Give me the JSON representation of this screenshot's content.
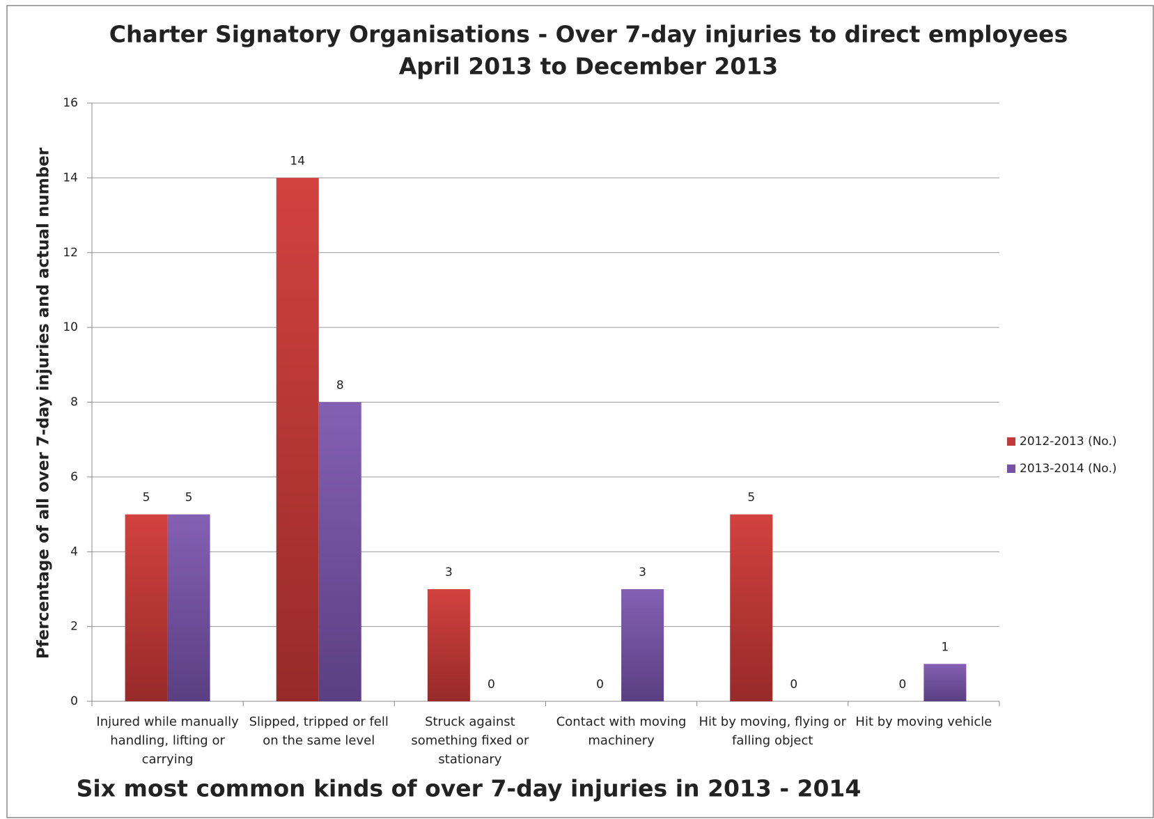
{
  "chart_data": {
    "type": "bar",
    "title": "Charter Signatory Organisations - Over 7-day injuries to direct employees",
    "subtitle": "April 2013 to December 2013",
    "x_label": "Six most common kinds of over 7-day injuries in 2013 - 2014",
    "y_label": "Pfercentage of all over 7-day injuries and actual number",
    "categories": [
      "Injured while manually handling, lifting or carrying",
      "Slipped, tripped or fell on the same level",
      "Struck against something fixed or stationary",
      "Contact with moving machinery",
      "Hit by moving, flying or falling object",
      "Hit by moving vehicle"
    ],
    "series": [
      {
        "name": "2012-2013 (No.)",
        "color": "#c0393b",
        "values": [
          5,
          14,
          3,
          0,
          5,
          0
        ]
      },
      {
        "name": "2013-2014 (No.)",
        "color": "#7552a3",
        "values": [
          5,
          8,
          0,
          3,
          0,
          1
        ]
      }
    ],
    "ylim": [
      0,
      16
    ],
    "yticks": [
      0,
      2,
      4,
      6,
      8,
      10,
      12,
      14,
      16
    ],
    "grid": true,
    "legend": "right"
  }
}
